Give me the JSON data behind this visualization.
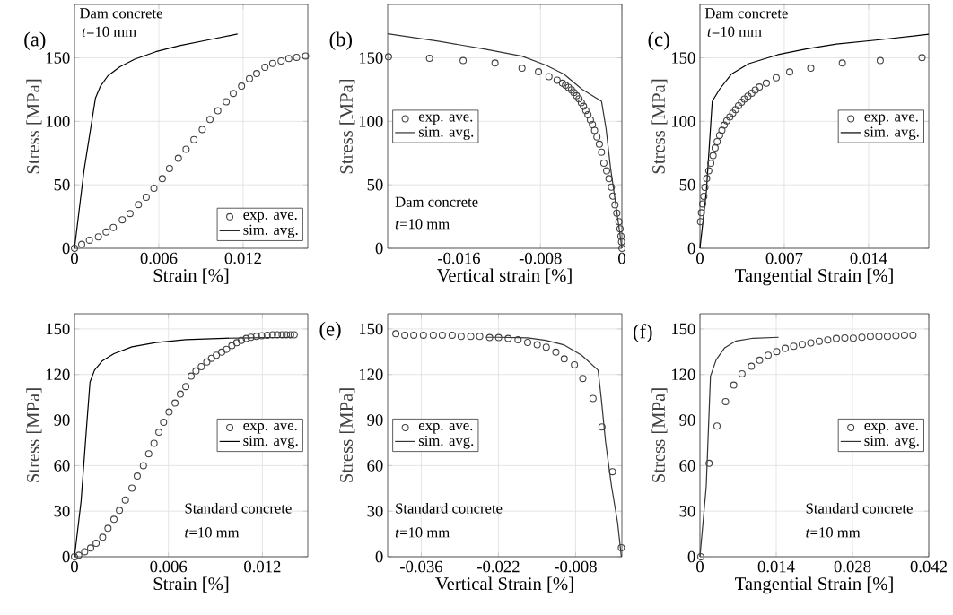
{
  "chart_data": [
    {
      "type": "scatter",
      "xlabel": "Strain [%]",
      "ylabel": "Stress [MPa]",
      "xlim": [
        0,
        0.0166
      ],
      "ylim": [
        0,
        192
      ],
      "xticks": [
        0,
        0.006,
        0.012
      ],
      "yticks": [
        0,
        50,
        100,
        150
      ],
      "grid": true,
      "legend": "bottom right",
      "annotations": [
        "(a)",
        "Dam concrete",
        "*t*=10 mm"
      ],
      "series": [
        {
          "name": "exp. ave.",
          "marker": "circle",
          "color": "#404040",
          "x": [
            0,
            0.00051,
            0.00106,
            0.0017,
            0.00225,
            0.00276,
            0.0034,
            0.00395,
            0.00455,
            0.0051,
            0.00565,
            0.00625,
            0.00676,
            0.00739,
            0.00794,
            0.0085,
            0.00909,
            0.00964,
            0.0102,
            0.0108,
            0.0113,
            0.01189,
            0.01245,
            0.01296,
            0.01355,
            0.0141,
            0.0147,
            0.01525,
            0.0158,
            0.01644
          ],
          "values": [
            0,
            3.1,
            6.4,
            9.0,
            12.8,
            16.5,
            22.5,
            27.4,
            34.5,
            40.2,
            47.3,
            54.8,
            62.9,
            70.9,
            78.0,
            85.6,
            93.6,
            101.4,
            108.3,
            115.4,
            122.0,
            127.7,
            133.6,
            137.6,
            142.6,
            145.6,
            147.5,
            149.4,
            150.4,
            151.5
          ]
        },
        {
          "name": "sim. avg.",
          "type": "line",
          "color": "#000000",
          "x": [
            0,
            0.00068,
            0.00149,
            0.00185,
            0.00238,
            0.00323,
            0.00429,
            0.00578,
            0.00748,
            0.0096,
            0.0116
          ],
          "values": [
            0,
            61.5,
            118.2,
            127.7,
            135.9,
            143.0,
            148.9,
            154.8,
            159.6,
            164.3,
            168.8
          ]
        }
      ]
    },
    {
      "type": "scatter",
      "xlabel": "Vertical strain [%]",
      "ylabel": "Stress [MPa]",
      "xlim": [
        -0.023,
        0
      ],
      "ylim": [
        0,
        192
      ],
      "xticks": [
        -0.016,
        -0.008,
        0
      ],
      "yticks": [
        0,
        50,
        100,
        150
      ],
      "grid": true,
      "legend": "left",
      "annotations": [
        "(b)",
        "Dam concrete",
        "*t*=10 mm"
      ],
      "series": [
        {
          "name": "exp. ave.",
          "marker": "circle",
          "color": "#404040",
          "x": [
            -0.02292,
            -0.01889,
            -0.01559,
            -0.01246,
            -0.00981,
            -0.00819,
            -0.00716,
            -0.00636,
            -0.00583,
            -0.00554,
            -0.00524,
            -0.00495,
            -0.00471,
            -0.00445,
            -0.00421,
            -0.00398,
            -0.00377,
            -0.00354,
            -0.00333,
            -0.00309,
            -0.00289,
            -0.00268,
            -0.00245,
            -0.00221,
            -0.002,
            -0.00177,
            -0.0015,
            -0.00127,
            -0.00103,
            -0.00088,
            -0.00068,
            -0.0005,
            -0.00029,
            -0.00018,
            -9e-05,
            -3e-05,
            0
          ],
          "values": [
            150.8,
            149.6,
            147.8,
            145.9,
            141.8,
            139.0,
            135.2,
            132.4,
            130.0,
            128.4,
            126.7,
            124.8,
            122.7,
            120.1,
            117.7,
            114.7,
            111.8,
            108.5,
            105.2,
            101.2,
            97.4,
            92.9,
            87.7,
            82.0,
            75.7,
            67.1,
            61.0,
            54.8,
            48.2,
            41.1,
            34.3,
            27.7,
            21.0,
            15.4,
            9.5,
            5.2,
            0
          ]
        },
        {
          "name": "sim. avg.",
          "type": "line",
          "color": "#333333",
          "x": [
            -0.023,
            -0.01806,
            -0.01364,
            -0.00981,
            -0.00745,
            -0.00569,
            -0.00392,
            -0.002,
            -0.00156,
            -0.00112,
            -0.00053,
            0
          ],
          "values": [
            169.0,
            163.1,
            157.2,
            151.3,
            144.2,
            137.1,
            125.3,
            115.8,
            94.6,
            63.8,
            30.7,
            0
          ]
        }
      ]
    },
    {
      "type": "scatter",
      "xlabel": "Tangential Strain [%]",
      "ylabel": "Stress [MPa]",
      "xlim": [
        0,
        0.019
      ],
      "ylim": [
        0,
        192
      ],
      "xticks": [
        0,
        0.007,
        0.014
      ],
      "yticks": [
        0,
        50,
        100,
        150
      ],
      "grid": true,
      "legend": "right",
      "annotations": [
        "(c)",
        "Dam concrete",
        "*t*=10 mm"
      ],
      "series": [
        {
          "name": "exp. ave.",
          "marker": "circle",
          "color": "#404040",
          "x": [
            5e-05,
            0.00012,
            0.00022,
            0.00032,
            0.00041,
            0.00056,
            0.00073,
            0.0009,
            0.00109,
            0.00126,
            0.00143,
            0.00163,
            0.00182,
            0.00201,
            0.00223,
            0.00248,
            0.00272,
            0.00296,
            0.0032,
            0.00345,
            0.00369,
            0.00398,
            0.0043,
            0.00459,
            0.00493,
            0.00551,
            0.00633,
            0.00745,
            0.0092,
            0.01182,
            0.01497,
            0.01844
          ],
          "values": [
            21,
            28,
            35,
            41,
            48,
            55,
            61,
            67,
            73,
            79,
            84,
            89,
            93,
            97,
            100.5,
            103.5,
            106.4,
            109.2,
            112.3,
            115.1,
            117.5,
            119.9,
            122.2,
            124.6,
            127,
            130,
            134.3,
            138.8,
            141.8,
            145.9,
            147.8,
            150.1
          ]
        },
        {
          "name": "sim. avg.",
          "type": "line",
          "color": "#000000",
          "x": [
            0,
            0.00053,
            0.00102,
            0.00163,
            0.0026,
            0.00405,
            0.00648,
            0.00891,
            0.01133,
            0.01497,
            0.019
          ],
          "values": [
            0,
            44.9,
            115.8,
            125.3,
            137.1,
            145.4,
            152.5,
            157.2,
            160.8,
            164.3,
            168.6
          ]
        }
      ]
    },
    {
      "type": "scatter",
      "xlabel": "Strain [%]",
      "ylabel": "Stress [MPa]",
      "xlim": [
        0,
        0.0149
      ],
      "ylim": [
        0,
        160
      ],
      "xticks": [
        0,
        0.006,
        0.012
      ],
      "yticks": [
        0,
        30,
        60,
        90,
        120,
        150
      ],
      "grid": true,
      "legend": "right",
      "annotations": [
        "Standard concrete",
        "*t*=10 mm"
      ],
      "series": [
        {
          "name": "exp. ave.",
          "marker": "circle",
          "color": "#404040",
          "x": [
            0,
            0.00027,
            0.00065,
            0.00103,
            0.00138,
            0.0018,
            0.00214,
            0.00252,
            0.00287,
            0.00325,
            0.00367,
            0.00401,
            0.0044,
            0.00474,
            0.00508,
            0.00539,
            0.00569,
            0.00604,
            0.00642,
            0.00676,
            0.00711,
            0.00745,
            0.00776,
            0.0081,
            0.00845,
            0.00875,
            0.00906,
            0.0094,
            0.00971,
            0.01005,
            0.01036,
            0.01066,
            0.01097,
            0.01127,
            0.01162,
            0.01196,
            0.01231,
            0.01265,
            0.01296,
            0.01326,
            0.01353,
            0.0138,
            0.01403
          ],
          "values": [
            0,
            1.0,
            3.3,
            5.7,
            8.8,
            12.8,
            18.7,
            24.6,
            30.5,
            37.4,
            45.2,
            53.1,
            60.0,
            67.8,
            74.7,
            82.0,
            88.5,
            95.3,
            101.2,
            107.1,
            112.1,
            118.9,
            122.3,
            125.2,
            128.2,
            130.7,
            132.7,
            134.7,
            136.6,
            139.0,
            140.9,
            142.5,
            143.7,
            144.5,
            145.1,
            145.5,
            145.9,
            146.1,
            146.1,
            146.1,
            146.1,
            146.1,
            146.1
          ]
        },
        {
          "name": "sim. avg.",
          "type": "line",
          "color": "#000000",
          "x": [
            0,
            0.00042,
            0.0008,
            0.00099,
            0.00128,
            0.00176,
            0.00252,
            0.00367,
            0.0052,
            0.00711,
            0.00959,
            0.01399
          ],
          "values": [
            0,
            36.4,
            89.4,
            115,
            122.9,
            128.8,
            133.7,
            138.2,
            141.0,
            142.9,
            143.9,
            144.5
          ]
        }
      ]
    },
    {
      "type": "scatter",
      "xlabel": "Vertical Strain [%]",
      "ylabel": "Stress [MPa]",
      "xlim": [
        -0.0421,
        0.0004
      ],
      "ylim": [
        0,
        160
      ],
      "xticks": [
        -0.036,
        -0.022,
        -0.008
      ],
      "yticks": [
        0,
        30,
        60,
        90,
        120,
        150
      ],
      "grid": true,
      "legend": "left",
      "annotations": [
        "(e)",
        "Standard concrete",
        "*t*=10 mm"
      ],
      "series": [
        {
          "name": "exp. ave.",
          "marker": "circle",
          "color": "#404040",
          "x": [
            -0.04062,
            -0.03899,
            -0.03736,
            -0.03562,
            -0.03382,
            -0.03219,
            -0.0304,
            -0.02877,
            -0.02703,
            -0.0254,
            -0.0236,
            -0.02197,
            -0.02023,
            -0.01844,
            -0.0167,
            -0.01496,
            -0.01332,
            -0.01158,
            -0.01006,
            -0.00821,
            -0.00669,
            -0.00484,
            -0.00321,
            -0.00131,
            0.0003
          ],
          "values": [
            146.8,
            145.9,
            145.9,
            145.9,
            145.9,
            145.9,
            145.9,
            145.1,
            145.1,
            145.1,
            144.3,
            144.3,
            143.7,
            142.9,
            141.1,
            139.6,
            138.0,
            134.7,
            130.3,
            126.4,
            117.4,
            104.2,
            85.5,
            56,
            5.9
          ]
        },
        {
          "name": "sim. avg.",
          "type": "line",
          "color": "#333333",
          "x": [
            -0.02431,
            -0.02213,
            -0.0167,
            -0.01343,
            -0.01017,
            -0.00691,
            -0.00392,
            -0.00337,
            -0.00256,
            -0.00147,
            -0.00038,
            0.0003
          ],
          "values": [
            144.5,
            144.5,
            144.1,
            142.5,
            139.6,
            132.7,
            122.9,
            105.2,
            75.7,
            46.2,
            22.6,
            0
          ]
        }
      ]
    },
    {
      "type": "scatter",
      "xlabel": "Tangential Strain [%]",
      "ylabel": "Stress [MPa]",
      "xlim": [
        0,
        0.042
      ],
      "ylim": [
        0,
        160
      ],
      "xticks": [
        0,
        0.014,
        0.028,
        0.042
      ],
      "yticks": [
        0,
        30,
        60,
        90,
        120,
        150
      ],
      "grid": true,
      "legend": "right",
      "annotations": [
        "(f)",
        "Standard concrete",
        "*t*=10 mm"
      ],
      "series": [
        {
          "name": "exp. ave.",
          "marker": "circle",
          "color": "#404040",
          "x": [
            0.00016,
            0.00167,
            0.00313,
            0.00469,
            0.0062,
            0.00772,
            0.00944,
            0.01095,
            0.01252,
            0.01408,
            0.01565,
            0.01721,
            0.01877,
            0.02034,
            0.0219,
            0.02346,
            0.02503,
            0.02659,
            0.02815,
            0.02972,
            0.03128,
            0.03285,
            0.03441,
            0.03597,
            0.03754,
            0.0391
          ],
          "values": [
            0,
            61.5,
            86.1,
            102.2,
            113.0,
            120.5,
            125.4,
            129.4,
            132.7,
            135.1,
            137.2,
            138.6,
            139.8,
            140.8,
            141.9,
            142.7,
            143.7,
            144.1,
            143.9,
            144.5,
            145.1,
            145.1,
            145.1,
            145.5,
            145.9,
            145.9
          ]
        },
        {
          "name": "sim. avg.",
          "type": "line",
          "color": "#333333",
          "x": [
            0,
            0.00115,
            0.00193,
            0.00297,
            0.00454,
            0.00662,
            0.00975,
            0.01444
          ],
          "values": [
            0,
            46.2,
            118.9,
            129.7,
            137.6,
            142.1,
            143.9,
            144.5
          ]
        }
      ]
    }
  ]
}
